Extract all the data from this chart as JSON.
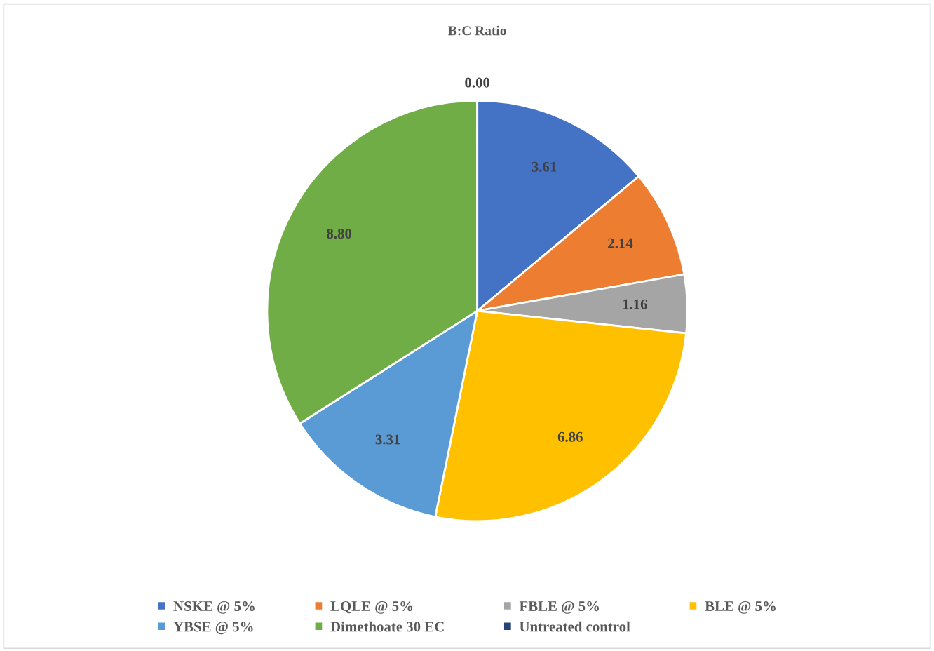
{
  "chart_data": {
    "type": "pie",
    "title": "B:C Ratio",
    "categories": [
      "NSKE @ 5%",
      "LQLE @ 5%",
      "FBLE @ 5%",
      "BLE @ 5%",
      "YBSE @ 5%",
      "Dimethoate 30 EC",
      "Untreated control"
    ],
    "values": [
      3.61,
      2.14,
      1.16,
      6.86,
      3.31,
      8.8,
      0.0
    ],
    "value_labels": [
      "3.61",
      "2.14",
      "1.16",
      "6.86",
      "3.31",
      "8.80",
      "0.00"
    ],
    "colors": [
      "#4472c4",
      "#ed7d31",
      "#a5a5a5",
      "#ffc000",
      "#5b9bd5",
      "#70ad47",
      "#264478"
    ],
    "legend": "bottom"
  }
}
